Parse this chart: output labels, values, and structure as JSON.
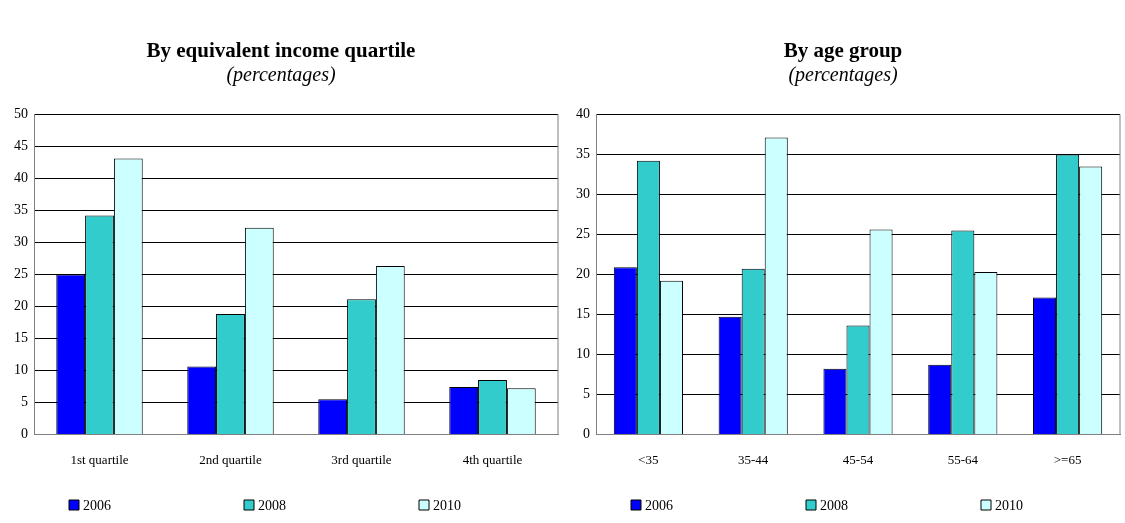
{
  "chart_data": [
    {
      "type": "bar",
      "title": "By equivalent income quartile",
      "subtitle": "(percentages)",
      "categories": [
        "1st quartile",
        "2nd quartile",
        "3rd quartile",
        "4th quartile"
      ],
      "series": [
        {
          "name": "2006",
          "color": "#0000ff",
          "values": [
            25.0,
            10.6,
            5.5,
            7.4
          ]
        },
        {
          "name": "2008",
          "color": "#33cccc",
          "values": [
            34.2,
            18.8,
            21.1,
            8.5
          ]
        },
        {
          "name": "2010",
          "color": "#ccffff",
          "values": [
            43.1,
            32.3,
            26.3,
            7.2
          ]
        }
      ],
      "ylim": [
        0,
        50
      ],
      "yticks": [
        0,
        5,
        10,
        15,
        20,
        25,
        30,
        35,
        40,
        45,
        50
      ],
      "grid": "y",
      "legend": "bottom"
    },
    {
      "type": "bar",
      "title": "By age group",
      "subtitle": "(percentages)",
      "categories": [
        "<35",
        "35-44",
        "45-54",
        "55-64",
        ">=65"
      ],
      "series": [
        {
          "name": "2006",
          "color": "#0000ff",
          "values": [
            20.9,
            14.7,
            8.2,
            8.7,
            17.1
          ]
        },
        {
          "name": "2008",
          "color": "#33cccc",
          "values": [
            34.2,
            20.7,
            13.6,
            25.5,
            35.0
          ]
        },
        {
          "name": "2010",
          "color": "#ccffff",
          "values": [
            19.2,
            37.1,
            25.6,
            20.3,
            33.5
          ]
        }
      ],
      "ylim": [
        0,
        40
      ],
      "yticks": [
        0,
        5,
        10,
        15,
        20,
        25,
        30,
        35,
        40
      ],
      "grid": "y",
      "legend": "bottom"
    }
  ]
}
